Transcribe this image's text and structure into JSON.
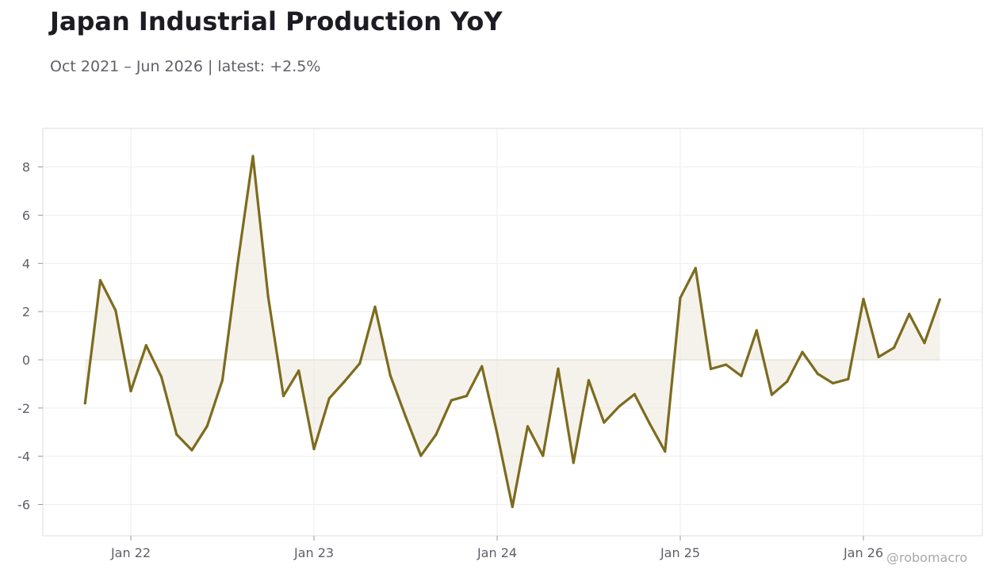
{
  "header": {
    "title": "Japan Industrial Production YoY",
    "subtitle": "Oct 2021 – Jun 2026 | latest: +2.5%"
  },
  "watermark": "@robomacro",
  "colors": {
    "line": "#7d6b1f",
    "fill": "#ece9de",
    "grid": "#eeeeee",
    "frame": "#dddddd",
    "zero": "#ddd8c8"
  },
  "chart_data": {
    "type": "area",
    "title": "Japan Industrial Production YoY",
    "subtitle": "Oct 2021 – Jun 2026 | latest: +2.5%",
    "xlabel": "",
    "ylabel": "",
    "x_ticks": [
      "Jan 22",
      "Jan 23",
      "Jan 24",
      "Jan 25",
      "Jan 26"
    ],
    "y_ticks": [
      8,
      6,
      4,
      2,
      0,
      -2,
      -4,
      -6
    ],
    "ylim": [
      -7.3,
      9.6
    ],
    "grid": true,
    "series": [
      {
        "x": [
          "2021-10",
          "2021-11",
          "2021-12",
          "2022-01",
          "2022-02",
          "2022-03",
          "2022-04",
          "2022-05",
          "2022-06",
          "2022-07",
          "2022-08",
          "2022-09",
          "2022-10",
          "2022-11",
          "2022-12",
          "2023-01",
          "2023-02",
          "2023-03",
          "2023-04",
          "2023-05",
          "2023-06",
          "2023-07",
          "2023-08",
          "2023-09",
          "2023-10",
          "2023-11",
          "2023-12",
          "2024-01",
          "2024-02",
          "2024-03",
          "2024-04",
          "2024-05",
          "2024-06",
          "2024-07",
          "2024-08",
          "2024-09",
          "2024-10",
          "2024-11",
          "2024-12",
          "2025-01",
          "2025-02",
          "2025-03",
          "2025-04",
          "2025-05",
          "2025-06",
          "2025-07",
          "2025-08",
          "2025-09",
          "2025-10",
          "2025-11",
          "2025-12",
          "2026-01",
          "2026-02",
          "2026-03",
          "2026-04",
          "2026-05",
          "2026-06"
        ],
        "values": [
          -1.8,
          3.3,
          2.05,
          -1.3,
          0.6,
          -0.7,
          -3.1,
          -3.75,
          -2.75,
          -0.85,
          4.0,
          8.45,
          2.6,
          -1.5,
          -0.45,
          -3.7,
          -1.6,
          -0.9,
          -0.15,
          2.2,
          -0.65,
          -2.35,
          -3.98,
          -3.1,
          -1.68,
          -1.5,
          -0.27,
          -3.05,
          -6.1,
          -2.76,
          -3.98,
          -0.37,
          -4.27,
          -0.85,
          -2.6,
          -1.93,
          -1.43,
          -2.65,
          -3.8,
          2.57,
          3.8,
          -0.38,
          -0.2,
          -0.67,
          1.22,
          -1.45,
          -0.9,
          0.32,
          -0.58,
          -0.97,
          -0.8,
          2.52,
          0.12,
          0.5,
          1.9,
          0.7,
          2.5
        ]
      }
    ]
  }
}
